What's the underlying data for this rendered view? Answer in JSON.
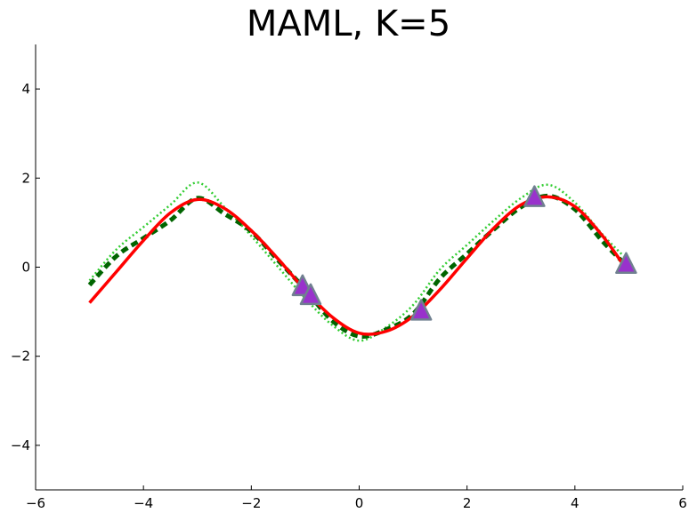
{
  "chart_data": {
    "type": "line",
    "title": "MAML, K=5",
    "xlabel": "",
    "ylabel": "",
    "xlim": [
      -6,
      6
    ],
    "ylim": [
      -5,
      5
    ],
    "xticks": [
      -6,
      -4,
      -2,
      0,
      2,
      4,
      6
    ],
    "yticks": [
      -4,
      -2,
      0,
      2,
      4
    ],
    "xtick_labels": [
      "−6",
      "−4",
      "−2",
      "0",
      "2",
      "4",
      "6"
    ],
    "ytick_labels": [
      "−4",
      "−2",
      "0",
      "2",
      "4"
    ],
    "grid": false,
    "legend": "none",
    "series": [
      {
        "style": "solid",
        "color": "#ff0000",
        "x": [
          -5.0,
          -4.5,
          -4.0,
          -3.5,
          -3.0,
          -2.5,
          -2.0,
          -1.5,
          -1.0,
          -0.5,
          0.0,
          0.5,
          1.0,
          1.5,
          2.0,
          2.5,
          3.0,
          3.5,
          4.0,
          4.5,
          4.9
        ],
        "y": [
          -0.8,
          -0.1,
          0.6,
          1.22,
          1.52,
          1.32,
          0.82,
          0.18,
          -0.52,
          -1.12,
          -1.48,
          -1.44,
          -1.1,
          -0.5,
          0.2,
          0.88,
          1.4,
          1.58,
          1.36,
          0.72,
          0.05
        ]
      },
      {
        "style": "dashed",
        "color": "#006400",
        "x": [
          -5.0,
          -4.5,
          -4.0,
          -3.5,
          -3.0,
          -2.5,
          -2.0,
          -1.5,
          -1.0,
          -0.5,
          0.0,
          0.5,
          1.0,
          1.5,
          2.0,
          2.5,
          3.0,
          3.5,
          4.0,
          4.5,
          4.9
        ],
        "y": [
          -0.4,
          0.25,
          0.65,
          1.05,
          1.55,
          1.2,
          0.8,
          0.15,
          -0.5,
          -1.2,
          -1.55,
          -1.4,
          -1.05,
          -0.25,
          0.3,
          0.85,
          1.35,
          1.6,
          1.3,
          0.6,
          0.1
        ]
      },
      {
        "style": "dotted",
        "color": "#32cd32",
        "x": [
          -5.0,
          -4.5,
          -4.0,
          -3.5,
          -3.0,
          -2.5,
          -2.0,
          -1.5,
          -1.0,
          -0.5,
          0.0,
          0.5,
          1.0,
          1.5,
          2.0,
          2.5,
          3.0,
          3.5,
          4.0,
          4.5,
          4.9
        ],
        "y": [
          -0.3,
          0.4,
          0.9,
          1.4,
          1.9,
          1.35,
          0.7,
          0.0,
          -0.7,
          -1.3,
          -1.65,
          -1.35,
          -0.85,
          -0.05,
          0.5,
          1.05,
          1.55,
          1.85,
          1.45,
          0.75,
          0.25
        ]
      }
    ],
    "points": {
      "marker": "triangle",
      "color": "#9932cc",
      "edge_color": "#708090",
      "x": [
        -1.05,
        -0.9,
        1.15,
        3.25,
        4.95
      ],
      "y": [
        -0.45,
        -0.65,
        -1.0,
        1.55,
        0.05
      ]
    }
  }
}
